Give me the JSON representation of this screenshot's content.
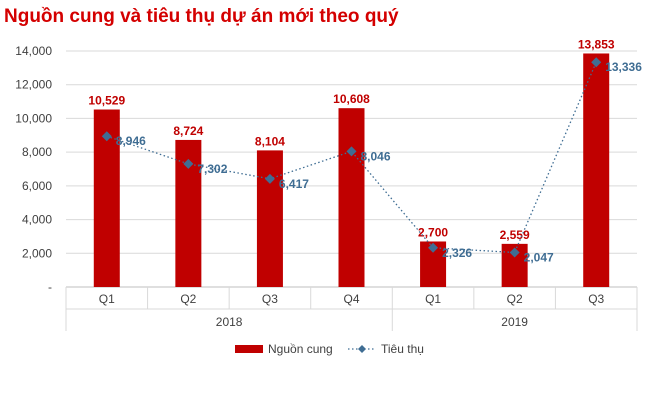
{
  "chart_data": {
    "type": "bar",
    "title": "Nguồn cung và tiêu thụ dự án mới theo quý",
    "categories": [
      "Q1",
      "Q2",
      "Q3",
      "Q4",
      "Q1",
      "Q2",
      "Q3"
    ],
    "groups": [
      {
        "label": "2018",
        "count": 4
      },
      {
        "label": "2019",
        "count": 3
      }
    ],
    "series": [
      {
        "name": "Nguồn cung",
        "type": "bar",
        "color": "#c00000",
        "values": [
          10529,
          8724,
          8104,
          10608,
          2700,
          2559,
          13853
        ],
        "labels": [
          "10,529",
          "8,724",
          "8,104",
          "10,608",
          "2,700",
          "2,559",
          "13,853"
        ]
      },
      {
        "name": "Tiêu thụ",
        "type": "line",
        "color": "#3f6d93",
        "values": [
          8946,
          7302,
          6417,
          8046,
          2326,
          2047,
          13336
        ],
        "labels": [
          "8,946",
          "7,302",
          "6,417",
          "8,046",
          "2,326",
          "2,047",
          "13,336"
        ]
      }
    ],
    "ylim": [
      0,
      14000
    ],
    "yticks": [
      0,
      2000,
      4000,
      6000,
      8000,
      10000,
      12000,
      14000
    ],
    "ytick_labels": [
      "-",
      "2,000",
      "4,000",
      "6,000",
      "8,000",
      "10,000",
      "12,000",
      "14,000"
    ],
    "grid": true,
    "legend_position": "bottom"
  }
}
